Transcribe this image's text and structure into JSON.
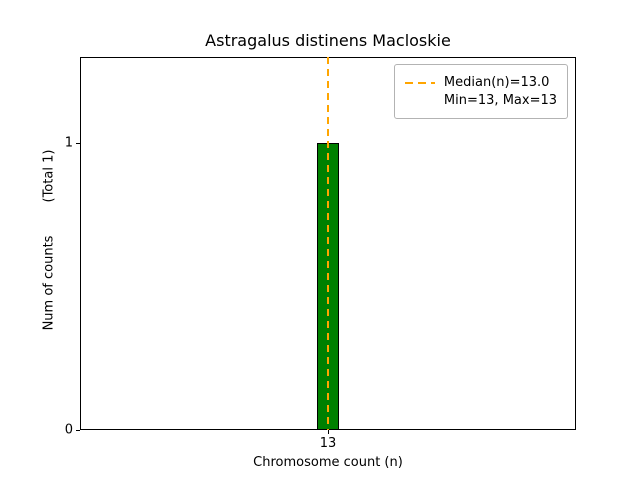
{
  "chart_data": {
    "type": "bar",
    "title": "Astragalus distinens Macloskie",
    "xlabel": "Chromosome count (n)",
    "ylabel": "Num of counts        (Total 1)",
    "categories": [
      13
    ],
    "values": [
      1
    ],
    "total_counts": 1,
    "xlim": [
      12.5,
      13.5
    ],
    "ylim": [
      0,
      1.3
    ],
    "bar_width": 0.045,
    "bar_color": "#008000",
    "bar_edge_color": "#000000",
    "grid": false,
    "xticks": [
      {
        "value": 13,
        "label": "13"
      }
    ],
    "yticks": [
      {
        "value": 0,
        "label": "0"
      },
      {
        "value": 1,
        "label": "1"
      }
    ],
    "median": {
      "value": 13.0,
      "color": "#FFA500",
      "style": "dashed"
    },
    "legend": {
      "position": "upper-right",
      "entries": [
        {
          "label": "Median(n)=13.0",
          "sample": "dashed-line"
        },
        {
          "label": "Min=13, Max=13",
          "sample": "none"
        }
      ]
    }
  }
}
